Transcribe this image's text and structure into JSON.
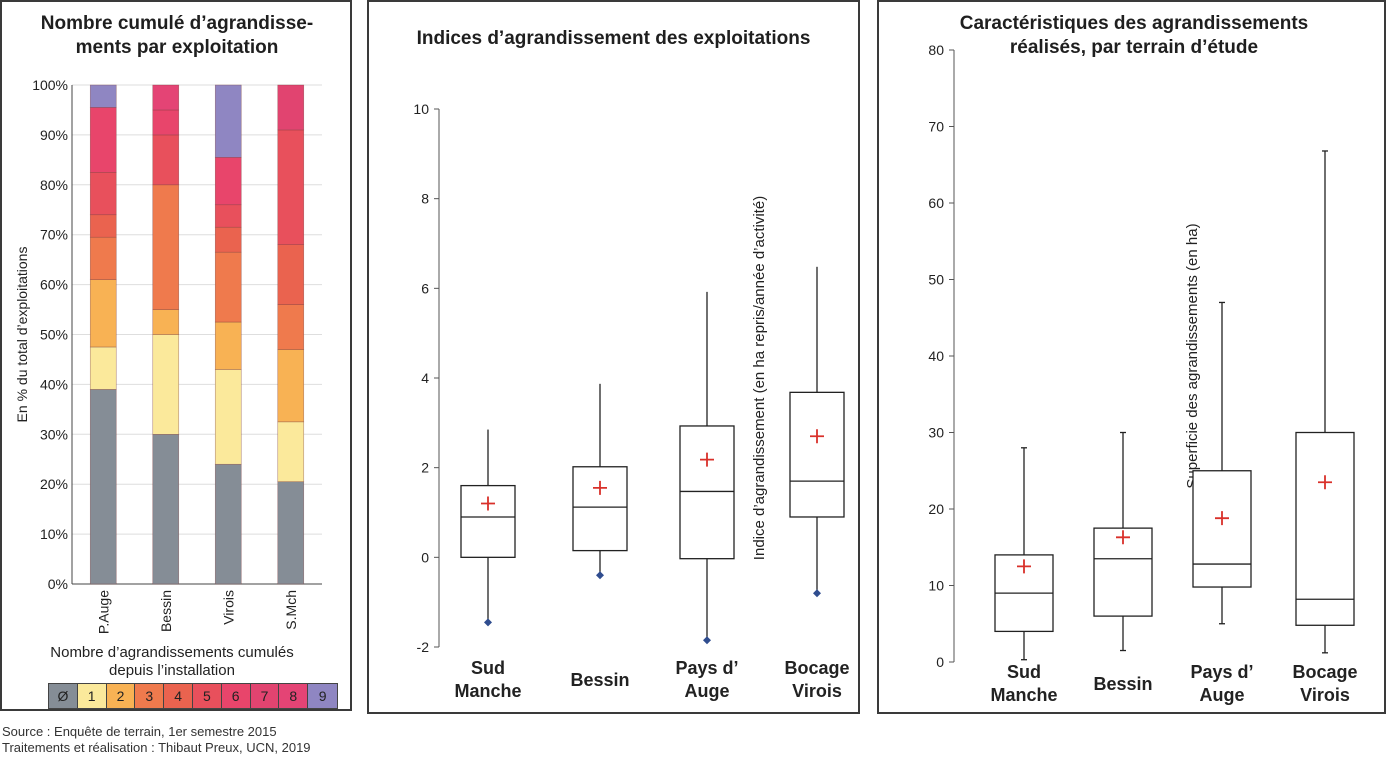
{
  "chart_data": [
    {
      "type": "stacked-bar",
      "title": "Nombre cumulé d’agrandisse-ments par exploitation",
      "ylabel": "En % du total d’exploitations",
      "ylim": [
        0,
        100
      ],
      "yticks": [
        "0%",
        "10%",
        "20%",
        "30%",
        "40%",
        "50%",
        "60%",
        "70%",
        "80%",
        "90%",
        "100%"
      ],
      "categories": [
        "P.Auge",
        "Bessin",
        "Virois",
        "S.Mch"
      ],
      "series": [
        {
          "name": "Ø",
          "values": [
            39,
            30,
            24,
            20.5
          ]
        },
        {
          "name": "1",
          "values": [
            8.5,
            20,
            19,
            12
          ]
        },
        {
          "name": "2",
          "values": [
            13.5,
            5,
            9.5,
            14.5
          ]
        },
        {
          "name": "3",
          "values": [
            8.5,
            25,
            14,
            9
          ]
        },
        {
          "name": "4",
          "values": [
            4.5,
            0,
            5,
            12
          ]
        },
        {
          "name": "5",
          "values": [
            8.5,
            10,
            4.5,
            23
          ]
        },
        {
          "name": "6",
          "values": [
            13,
            5,
            9.5,
            0
          ]
        },
        {
          "name": "7",
          "values": [
            0,
            0,
            0,
            9
          ]
        },
        {
          "name": "8",
          "values": [
            0,
            5,
            0,
            0
          ]
        },
        {
          "name": "9",
          "values": [
            4.5,
            0,
            14.5,
            0
          ]
        }
      ],
      "colors": [
        "#858d96",
        "#fbe99b",
        "#f8b254",
        "#ef7a4d",
        "#ea634f",
        "#e8505c",
        "#e8456b",
        "#e14470",
        "#e44475",
        "#8f86c2"
      ],
      "legend_title": "Nombre d’agrandissements cumulés depuis l’installation",
      "legend_placement": "bottom"
    },
    {
      "type": "boxplot",
      "title": "Indices d’agrandissement des exploitations",
      "ylabel": "Indice d’agrandissement (en ha repris/année d’activité)",
      "ylim": [
        -2,
        10
      ],
      "yticks": [
        "-2",
        "0",
        "2",
        "4",
        "6",
        "8",
        "10"
      ],
      "categories": [
        "Sud Manche",
        "Bessin",
        "Pays d’ Auge",
        "Bocage Virois"
      ],
      "boxes": [
        {
          "min": -1.45,
          "q1": 0,
          "median": 0.9,
          "q3": 1.6,
          "max": 2.85,
          "mean": 1.2
        },
        {
          "min": -0.4,
          "q1": 0.15,
          "median": 1.12,
          "q3": 2.02,
          "max": 3.87,
          "mean": 1.55
        },
        {
          "min": -1.85,
          "q1": -0.03,
          "median": 1.47,
          "q3": 2.93,
          "max": 5.92,
          "mean": 2.18
        },
        {
          "min": -0.8,
          "q1": 0.9,
          "median": 1.7,
          "q3": 3.68,
          "max": 6.48,
          "mean": 2.7
        }
      ]
    },
    {
      "type": "boxplot",
      "title": "Caractéristiques des agrandissements réalisés, par terrain d’étude",
      "ylabel": "Superficie des agrandissements (en ha)",
      "ylim": [
        0,
        80
      ],
      "yticks": [
        "0",
        "10",
        "20",
        "30",
        "40",
        "50",
        "60",
        "70",
        "80"
      ],
      "categories": [
        "Sud Manche",
        "Bessin",
        "Pays d’ Auge",
        "Bocage Virois"
      ],
      "boxes": [
        {
          "min": 0.3,
          "q1": 4,
          "median": 9,
          "q3": 14,
          "max": 28,
          "mean": 12.5
        },
        {
          "min": 1.5,
          "q1": 6,
          "median": 13.5,
          "q3": 17.5,
          "max": 30,
          "mean": 16.3
        },
        {
          "min": 5,
          "q1": 9.8,
          "median": 12.8,
          "q3": 25,
          "max": 47,
          "mean": 18.8
        },
        {
          "min": 1.2,
          "q1": 4.8,
          "median": 8.2,
          "q3": 30,
          "max": 66.8,
          "mean": 23.5
        }
      ]
    }
  ],
  "source_line1": "Source : Enquête de terrain, 1er semestre 2015",
  "source_line2": "Traitements et réalisation : Thibaut Preux, UCN, 2019"
}
